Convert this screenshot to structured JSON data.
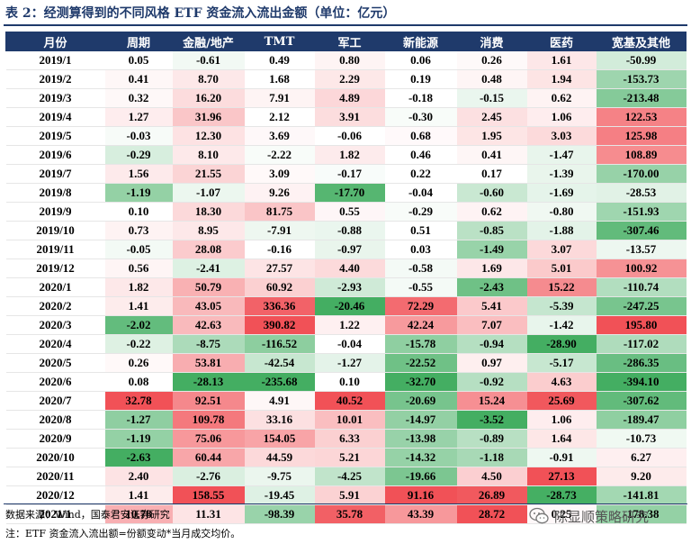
{
  "title": "表 2：经测算得到的不同风格 ETF 资金流入流出金额（单位：亿元）",
  "columns": [
    "月份",
    "周期",
    "金融/地产",
    "TMT",
    "军工",
    "新能源",
    "消费",
    "医药",
    "宽基及其他"
  ],
  "rows": [
    {
      "month": "2019/1",
      "values": [
        "0.05",
        "-0.61",
        "0.49",
        "0.80",
        "0.06",
        "0.26",
        "1.61",
        "-50.99"
      ]
    },
    {
      "month": "2019/2",
      "values": [
        "0.41",
        "8.70",
        "1.68",
        "2.29",
        "0.19",
        "0.48",
        "1.94",
        "-153.73"
      ]
    },
    {
      "month": "2019/3",
      "values": [
        "0.32",
        "16.20",
        "7.91",
        "4.89",
        "-0.18",
        "-0.15",
        "0.62",
        "-213.48"
      ]
    },
    {
      "month": "2019/4",
      "values": [
        "1.27",
        "31.96",
        "2.12",
        "3.91",
        "-0.30",
        "2.45",
        "1.06",
        "122.53"
      ]
    },
    {
      "month": "2019/5",
      "values": [
        "-0.03",
        "12.30",
        "3.69",
        "-0.06",
        "0.68",
        "1.95",
        "3.03",
        "125.98"
      ]
    },
    {
      "month": "2019/6",
      "values": [
        "-0.29",
        "8.10",
        "-2.22",
        "1.82",
        "0.46",
        "0.41",
        "-1.47",
        "108.89"
      ]
    },
    {
      "month": "2019/7",
      "values": [
        "1.56",
        "21.55",
        "3.09",
        "-0.17",
        "0.22",
        "0.17",
        "-1.39",
        "-170.00"
      ]
    },
    {
      "month": "2019/8",
      "values": [
        "-1.19",
        "-1.07",
        "9.26",
        "-17.70",
        "-0.04",
        "-0.60",
        "-1.69",
        "-28.53"
      ]
    },
    {
      "month": "2019/9",
      "values": [
        "0.10",
        "18.30",
        "81.75",
        "0.55",
        "-0.29",
        "0.62",
        "-0.80",
        "-151.93"
      ]
    },
    {
      "month": "2019/10",
      "values": [
        "0.73",
        "8.95",
        "-7.91",
        "-0.88",
        "0.51",
        "-0.85",
        "-1.88",
        "-307.46"
      ]
    },
    {
      "month": "2019/11",
      "values": [
        "-0.05",
        "28.08",
        "-0.16",
        "-0.97",
        "0.03",
        "-1.49",
        "3.07",
        "-13.57"
      ]
    },
    {
      "month": "2019/12",
      "values": [
        "0.56",
        "-2.41",
        "27.57",
        "4.40",
        "-0.58",
        "1.69",
        "5.01",
        "100.92"
      ]
    },
    {
      "month": "2020/1",
      "values": [
        "1.82",
        "50.79",
        "60.92",
        "-2.93",
        "-0.55",
        "-2.43",
        "15.22",
        "-110.74"
      ]
    },
    {
      "month": "2020/2",
      "values": [
        "1.41",
        "43.05",
        "336.36",
        "-20.46",
        "72.29",
        "5.41",
        "-5.39",
        "-247.25"
      ]
    },
    {
      "month": "2020/3",
      "values": [
        "-2.02",
        "42.63",
        "390.82",
        "1.22",
        "42.24",
        "7.07",
        "-1.42",
        "195.80"
      ]
    },
    {
      "month": "2020/4",
      "values": [
        "-0.22",
        "-8.75",
        "-116.52",
        "-0.04",
        "-15.78",
        "-0.94",
        "-28.90",
        "-117.02"
      ]
    },
    {
      "month": "2020/5",
      "values": [
        "0.26",
        "53.81",
        "-42.54",
        "-1.27",
        "-22.52",
        "0.97",
        "-5.17",
        "-286.35"
      ]
    },
    {
      "month": "2020/6",
      "values": [
        "0.08",
        "-28.13",
        "-235.68",
        "0.10",
        "-32.70",
        "-0.92",
        "4.63",
        "-394.10"
      ]
    },
    {
      "month": "2020/7",
      "values": [
        "32.78",
        "92.51",
        "4.91",
        "40.52",
        "-20.69",
        "15.24",
        "25.69",
        "-307.62"
      ]
    },
    {
      "month": "2020/8",
      "values": [
        "-1.27",
        "109.78",
        "33.16",
        "10.01",
        "-14.97",
        "-3.52",
        "1.06",
        "-189.47"
      ]
    },
    {
      "month": "2020/9",
      "values": [
        "-1.19",
        "75.06",
        "154.05",
        "6.33",
        "-13.98",
        "-0.89",
        "1.64",
        "-10.73"
      ]
    },
    {
      "month": "2020/10",
      "values": [
        "-2.63",
        "60.44",
        "44.59",
        "5.21",
        "-14.32",
        "-1.18",
        "-0.91",
        "6.27"
      ]
    },
    {
      "month": "2020/11",
      "values": [
        "2.40",
        "-2.76",
        "-9.75",
        "-4.25",
        "-19.66",
        "4.50",
        "27.13",
        "9.20"
      ]
    },
    {
      "month": "2020/12",
      "values": [
        "1.41",
        "158.55",
        "-19.45",
        "5.91",
        "91.16",
        "26.89",
        "-28.73",
        "-141.81"
      ]
    },
    {
      "month": "2021/1",
      "values": [
        "10.78",
        "11.31",
        "-98.39",
        "35.78",
        "43.39",
        "28.72",
        "0.25",
        "-178.38"
      ]
    }
  ],
  "source": "数据来源：Wind，国泰君安证券研究",
  "note": "注：ETF 资金流入流出额=份额变动*当月成交均价。",
  "watermark": "陈显顺策略研究",
  "colors": {
    "header": "#1f3a6b",
    "positive": "#f0484e",
    "negative": "#3aaa5a"
  }
}
